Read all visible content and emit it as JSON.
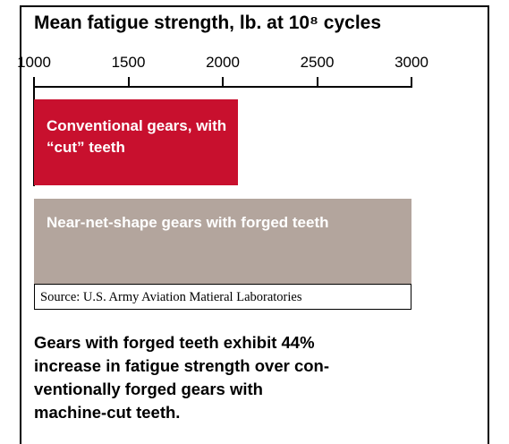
{
  "chart_data": {
    "type": "bar",
    "orientation": "horizontal",
    "title": "Mean fatigue strength, lb. at 10⁸ cycles",
    "categories": [
      "Conventional gears, with “cut” teeth",
      "Near-net-shape gears with forged teeth"
    ],
    "values": [
      2080,
      3000
    ],
    "colors": [
      "#c8102e",
      "#b3a59d"
    ],
    "xlim": [
      1000,
      3000
    ],
    "xticks": [
      1000,
      1500,
      2000,
      2500,
      3000
    ],
    "source": "Source: U.S. Army Aviation Matieral Laboratories",
    "note": [
      "Gears with forged teeth exhibit 44%",
      "increase in fatigue strength over con-",
      "ventionally forged gears with",
      "machine-cut teeth."
    ]
  }
}
